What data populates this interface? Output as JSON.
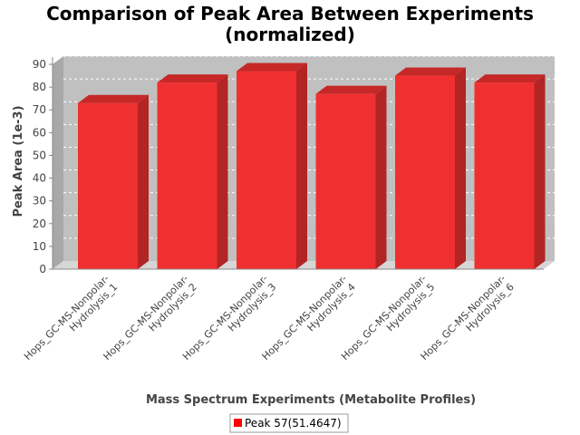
{
  "chart_data": {
    "type": "bar",
    "title_lines": [
      "Comparison of Peak Area Between Experiments",
      "(normalized)"
    ],
    "xlabel": "Mass Spectrum Experiments (Metabolite Profiles)",
    "ylabel": "Peak Area (1e-3)",
    "categories": [
      [
        "Hops_GC-MS-Nonpolar-",
        "Hydrolysis_1"
      ],
      [
        "Hops_GC-MS-Nonpolar-",
        "Hydrolysis_2"
      ],
      [
        "Hops_GC-MS-Nonpolar-",
        "Hydrolysis_3"
      ],
      [
        "Hops_GC-MS-Nonpolar-",
        "Hydrolysis_4"
      ],
      [
        "Hops_GC-MS-Nonpolar-",
        "Hydrolysis_5"
      ],
      [
        "Hops_GC-MS-Nonpolar-",
        "Hydrolysis_6"
      ]
    ],
    "series": [
      {
        "name": "Peak 57(51.4647)",
        "values": [
          73,
          82,
          87,
          77,
          85,
          82
        ]
      }
    ],
    "ylim": [
      0,
      90
    ],
    "yticks": [
      "0",
      "10",
      "20",
      "30",
      "40",
      "50",
      "60",
      "70",
      "80",
      "90"
    ],
    "grid": true,
    "legend_position": "bottom",
    "colors": {
      "bar_front": "#f03030",
      "bar_side": "#b32424",
      "bar_top": "#c62828",
      "plot_back": "#c0c0c0",
      "plot_floor": "#d6d6d6",
      "grid": "#ffffff"
    }
  }
}
